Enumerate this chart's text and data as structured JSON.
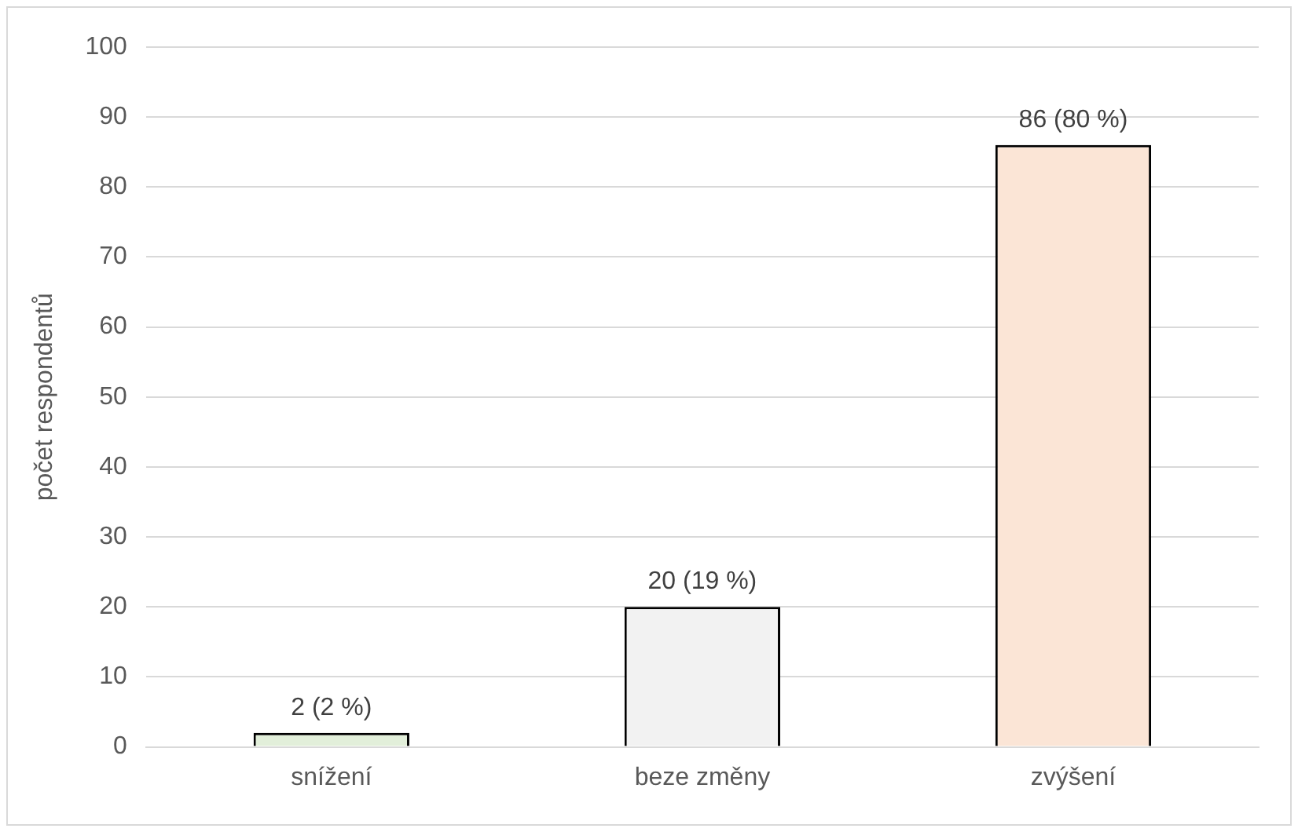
{
  "chart_data": {
    "type": "bar",
    "ylabel": "počet respondentů",
    "categories": [
      "snížení",
      "beze změny",
      "zvýšení"
    ],
    "values": [
      2,
      20,
      86
    ],
    "colors": [
      "#e2efda",
      "#f2f2f2",
      "#fbe5d6"
    ],
    "value_labels": [
      "2 (2 %)",
      "20 (19 %)",
      "86 (80 %)"
    ],
    "ylim": [
      0,
      100
    ],
    "yticks": [
      0,
      10,
      20,
      30,
      40,
      50,
      60,
      70,
      80,
      90,
      100
    ],
    "grid": "y",
    "legend": false
  }
}
